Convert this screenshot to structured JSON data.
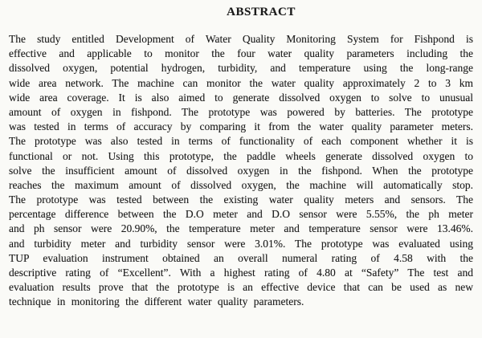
{
  "document": {
    "title": "ABSTRACT",
    "lines": [
      "The study entitled Development of Water Quality Monitoring System for Fishpond is",
      "effective and applicable to monitor the four water quality parameters including the",
      "dissolved oxygen, potential hydrogen, turbidity, and temperature using the long-range",
      "wide area network. The machine can monitor the water quality approximately 2 to 3 km",
      "wide area coverage. It is also aimed to generate dissolved oxygen to solve to unusual",
      "amount of oxygen in fishpond. The prototype was powered by batteries. The prototype",
      "was tested in terms of accuracy by comparing it from the water quality parameter meters.",
      "The prototype was also tested in terms of functionality of each component whether it is",
      "functional or not. Using this prototype, the paddle wheels generate dissolved oxygen to",
      "solve the insufficient amount of dissolved oxygen in the fishpond. When the prototype",
      "reaches the maximum amount of dissolved oxygen, the machine will automatically stop.",
      "The prototype was tested between the existing water quality meters and sensors. The",
      "percentage difference between the D.O meter and D.O sensor were 5.55%, the ph meter",
      "and ph sensor were 20.90%, the temperature meter and temperature sensor were 13.46%.",
      "and turbidity meter and turbidity sensor were 3.01%. The prototype was evaluated using",
      "TUP evaluation instrument obtained an overall numeral rating of 4.58 with the",
      "descriptive rating of “Excellent”. With a highest rating of 4.80 at “Safety” The test and",
      "evaluation results prove that the prototype is an effective device that can be used as new",
      "technique in monitoring the different water quality parameters."
    ]
  }
}
